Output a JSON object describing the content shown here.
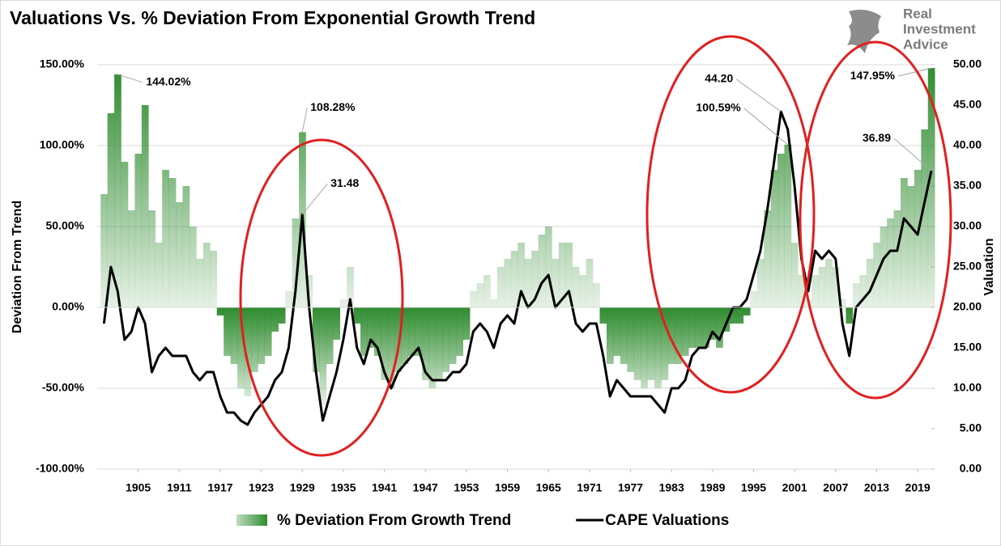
{
  "chart_data": {
    "type": "bar-line",
    "title": "Valuations Vs. % Deviation From Exponential Growth Trend",
    "ylabel": "Deviation From Trend",
    "y2label": "Valuation",
    "x": [
      1900,
      1901,
      1902,
      1903,
      1904,
      1905,
      1906,
      1907,
      1908,
      1909,
      1910,
      1911,
      1912,
      1913,
      1914,
      1915,
      1916,
      1917,
      1918,
      1919,
      1920,
      1921,
      1922,
      1923,
      1924,
      1925,
      1926,
      1927,
      1928,
      1929,
      1930,
      1931,
      1932,
      1933,
      1934,
      1935,
      1936,
      1937,
      1938,
      1939,
      1940,
      1941,
      1942,
      1943,
      1944,
      1945,
      1946,
      1947,
      1948,
      1949,
      1950,
      1951,
      1952,
      1953,
      1954,
      1955,
      1956,
      1957,
      1958,
      1959,
      1960,
      1961,
      1962,
      1963,
      1964,
      1965,
      1966,
      1967,
      1968,
      1969,
      1970,
      1971,
      1972,
      1973,
      1974,
      1975,
      1976,
      1977,
      1978,
      1979,
      1980,
      1981,
      1982,
      1983,
      1984,
      1985,
      1986,
      1987,
      1988,
      1989,
      1990,
      1991,
      1992,
      1993,
      1994,
      1995,
      1996,
      1997,
      1998,
      1999,
      2000,
      2001,
      2002,
      2003,
      2004,
      2005,
      2006,
      2007,
      2008,
      2009,
      2010,
      2011,
      2012,
      2013,
      2014,
      2015,
      2016,
      2017,
      2018,
      2019,
      2020,
      2021
    ],
    "xlim": [
      1899,
      2021
    ],
    "xticks": [
      1905,
      1911,
      1917,
      1923,
      1929,
      1935,
      1941,
      1947,
      1953,
      1959,
      1965,
      1971,
      1977,
      1983,
      1989,
      1995,
      2001,
      2007,
      2013,
      2019
    ],
    "ylim": [
      -100,
      150
    ],
    "yticks": [
      {
        "value": -100,
        "label": "-100.00%"
      },
      {
        "value": -50,
        "label": "-50.00%"
      },
      {
        "value": 0,
        "label": "0.00%"
      },
      {
        "value": 50,
        "label": "50.00%"
      },
      {
        "value": 100,
        "label": "100.00%"
      },
      {
        "value": 150,
        "label": "150.00%"
      }
    ],
    "y2lim": [
      0,
      50
    ],
    "y2ticks": [
      {
        "value": 0,
        "label": "0.00"
      },
      {
        "value": 5,
        "label": "5.00"
      },
      {
        "value": 10,
        "label": "10.00"
      },
      {
        "value": 15,
        "label": "15.00"
      },
      {
        "value": 20,
        "label": "20.00"
      },
      {
        "value": 25,
        "label": "25.00"
      },
      {
        "value": 30,
        "label": "30.00"
      },
      {
        "value": 35,
        "label": "35.00"
      },
      {
        "value": 40,
        "label": "40.00"
      },
      {
        "value": 45,
        "label": "45.00"
      },
      {
        "value": 50,
        "label": "50.00"
      }
    ],
    "grid": true,
    "legend": "bottom",
    "series": [
      {
        "name": "% Deviation From Growth Trend",
        "color": "#2e8b2e",
        "axis": "y",
        "kind": "bar",
        "values": [
          70,
          120,
          144.02,
          90,
          60,
          95,
          125,
          60,
          40,
          85,
          80,
          65,
          75,
          50,
          30,
          40,
          35,
          -5,
          -30,
          -35,
          -50,
          -55,
          -40,
          -35,
          -30,
          -15,
          -10,
          10,
          55,
          108.28,
          20,
          -40,
          -60,
          -35,
          -20,
          5,
          25,
          -10,
          -30,
          -25,
          -30,
          -45,
          -50,
          -40,
          -35,
          -30,
          -30,
          -45,
          -50,
          -45,
          -40,
          -35,
          -30,
          -20,
          10,
          15,
          20,
          5,
          25,
          30,
          35,
          40,
          30,
          35,
          45,
          50,
          30,
          40,
          40,
          25,
          20,
          30,
          15,
          -10,
          -35,
          -30,
          -35,
          -40,
          -45,
          -50,
          -45,
          -50,
          -45,
          -35,
          -35,
          -30,
          -25,
          -25,
          -25,
          -20,
          -25,
          -15,
          -10,
          -10,
          -5,
          10,
          30,
          60,
          85,
          95,
          100.59,
          40,
          20,
          5,
          20,
          25,
          30,
          25,
          5,
          -10,
          15,
          20,
          30,
          40,
          50,
          55,
          60,
          80,
          75,
          85,
          110,
          147.95
        ],
        "value_labels": [
          null,
          null,
          "144.02%",
          null,
          null,
          null,
          null,
          null,
          null,
          null,
          null,
          null,
          null,
          null,
          null,
          null,
          null,
          null,
          null,
          null,
          null,
          null,
          null,
          null,
          null,
          null,
          null,
          null,
          null,
          "108.28%",
          null,
          null,
          null,
          null,
          null,
          null,
          null,
          null,
          null,
          null,
          null,
          null,
          null,
          null,
          null,
          null,
          null,
          null,
          null,
          null,
          null,
          null,
          null,
          null,
          null,
          null,
          null,
          null,
          null,
          null,
          null,
          null,
          null,
          null,
          null,
          null,
          null,
          null,
          null,
          null,
          null,
          null,
          null,
          null,
          null,
          null,
          null,
          null,
          null,
          null,
          null,
          null,
          null,
          null,
          null,
          null,
          null,
          null,
          null,
          null,
          null,
          null,
          null,
          null,
          null,
          null,
          null,
          null,
          null,
          null,
          "100.59%",
          null,
          null,
          null,
          null,
          null,
          null,
          null,
          null,
          null,
          null,
          null,
          null,
          null,
          null,
          null,
          null,
          null,
          null,
          null,
          null,
          "147.95%"
        ]
      },
      {
        "name": "CAPE Valuations",
        "color": "#000000",
        "axis": "y2",
        "kind": "line",
        "values": [
          18,
          25,
          22,
          16,
          17,
          20,
          18,
          12,
          14,
          15,
          14,
          14,
          14,
          12,
          11,
          12,
          12,
          9,
          7,
          7,
          6,
          5.5,
          7,
          8,
          9,
          11,
          12,
          15,
          22,
          31.48,
          20,
          12,
          6,
          9,
          12,
          16,
          21,
          15,
          13,
          16,
          15,
          12,
          10,
          12,
          13,
          14,
          15,
          12,
          11,
          11,
          11,
          12,
          12,
          13,
          17,
          18,
          17,
          15,
          18,
          19,
          18,
          22,
          20,
          21,
          23,
          24,
          20,
          21,
          22,
          18,
          17,
          18,
          18,
          14,
          9,
          11,
          10,
          9,
          9,
          9,
          9,
          8,
          7,
          10,
          10,
          11,
          14,
          15,
          15,
          17,
          16,
          18,
          20,
          20,
          21,
          24,
          27,
          32,
          38,
          44.2,
          42,
          35,
          26,
          22,
          27,
          26,
          27,
          26,
          18,
          14,
          20,
          21,
          22,
          24,
          26,
          27,
          27,
          31,
          30,
          29,
          33,
          36.89
        ],
        "value_labels": [
          null,
          null,
          null,
          null,
          null,
          null,
          null,
          null,
          null,
          null,
          null,
          null,
          null,
          null,
          null,
          null,
          null,
          null,
          null,
          null,
          null,
          null,
          null,
          null,
          null,
          null,
          null,
          null,
          null,
          "31.48",
          null,
          null,
          null,
          null,
          null,
          null,
          null,
          null,
          null,
          null,
          null,
          null,
          null,
          null,
          null,
          null,
          null,
          null,
          null,
          null,
          null,
          null,
          null,
          null,
          null,
          null,
          null,
          null,
          null,
          null,
          null,
          null,
          null,
          null,
          null,
          null,
          null,
          null,
          null,
          null,
          null,
          null,
          null,
          null,
          null,
          null,
          null,
          null,
          null,
          null,
          null,
          null,
          null,
          null,
          null,
          null,
          null,
          null,
          null,
          null,
          null,
          null,
          null,
          null,
          null,
          null,
          null,
          null,
          null,
          "44.20",
          null,
          null,
          null,
          null,
          null,
          null,
          null,
          null,
          null,
          null,
          null,
          null,
          null,
          null,
          null,
          null,
          null,
          null,
          null,
          null,
          null,
          "36.89"
        ]
      }
    ]
  },
  "logo": [
    "Real",
    "Investment",
    "Advice"
  ]
}
